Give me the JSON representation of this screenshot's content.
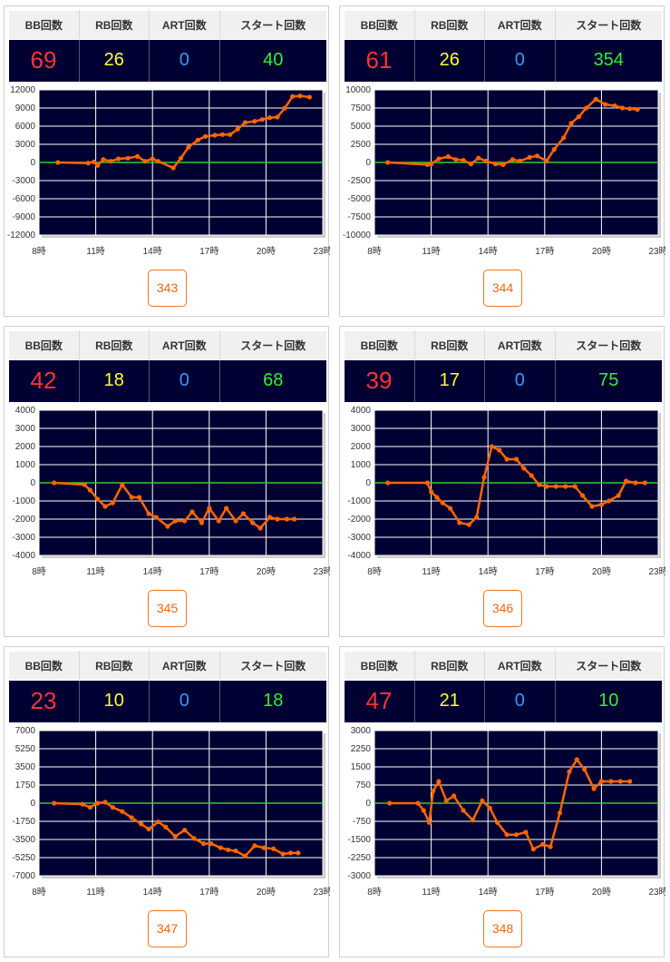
{
  "headers": {
    "bb": "BB回数",
    "rb": "RB回数",
    "art": "ART回数",
    "start": "スタート回数"
  },
  "colors": {
    "plot_bg": "#000033",
    "grid": "#ffffff",
    "zero_line": "#33cc33",
    "series": "#ff6600",
    "bb": "#ff3333",
    "rb": "#ffff33",
    "art": "#3399ff",
    "start": "#33ee33"
  },
  "machines": [
    {
      "number": "343",
      "bb": "69",
      "rb": "26",
      "art": "0",
      "start": "40"
    },
    {
      "number": "344",
      "bb": "61",
      "rb": "26",
      "art": "0",
      "start": "354"
    },
    {
      "number": "345",
      "bb": "42",
      "rb": "18",
      "art": "0",
      "start": "68"
    },
    {
      "number": "346",
      "bb": "39",
      "rb": "17",
      "art": "0",
      "start": "75"
    },
    {
      "number": "347",
      "bb": "23",
      "rb": "10",
      "art": "0",
      "start": "18"
    },
    {
      "number": "348",
      "bb": "47",
      "rb": "21",
      "art": "0",
      "start": "10"
    }
  ],
  "chart_data": [
    {
      "type": "line",
      "x_ticks": [
        "8時",
        "11時",
        "14時",
        "17時",
        "20時",
        "23時"
      ],
      "xlim": [
        8,
        23
      ],
      "y_ticks": [
        "12000",
        "9000",
        "6000",
        "3000",
        "0",
        "-3000",
        "-6000",
        "-9000",
        "-12000"
      ],
      "ylim": [
        -12000,
        12000
      ],
      "grid": true,
      "series": [
        {
          "x": [
            9,
            10.6,
            10.9,
            11.1,
            11.4,
            11.8,
            12.2,
            12.7,
            13.2,
            13.6,
            14,
            14.3,
            15.1,
            15.5,
            15.9,
            16.4,
            16.8,
            17.3,
            17.7,
            18.1,
            18.5,
            18.9,
            19.4,
            19.8,
            20.2,
            20.6,
            21.0,
            21.4,
            21.8,
            22.3
          ],
          "y": [
            0,
            -100,
            100,
            -500,
            500,
            200,
            600,
            700,
            1000,
            200,
            600,
            200,
            -900,
            700,
            2500,
            3700,
            4300,
            4500,
            4600,
            4600,
            5500,
            6600,
            6800,
            7100,
            7400,
            7500,
            9000,
            10900,
            11000,
            10800
          ]
        }
      ]
    },
    {
      "type": "line",
      "x_ticks": [
        "8時",
        "11時",
        "14時",
        "17時",
        "20時",
        "23時"
      ],
      "xlim": [
        8,
        23
      ],
      "y_ticks": [
        "10000",
        "7500",
        "5000",
        "2500",
        "0",
        "-2500",
        "-5000",
        "-7500",
        "-10000"
      ],
      "ylim": [
        -10000,
        10000
      ],
      "grid": true,
      "series": [
        {
          "x": [
            8.7,
            10.8,
            11.0,
            11.4,
            11.9,
            12.3,
            12.7,
            13.1,
            13.5,
            13.9,
            14.4,
            14.8,
            15.3,
            15.7,
            16.2,
            16.6,
            17.1,
            17.5,
            18.0,
            18.4,
            18.8,
            19.2,
            19.7,
            20.2,
            20.7,
            21.1,
            21.5,
            21.9
          ],
          "y": [
            0,
            -300,
            -200,
            500,
            800,
            400,
            300,
            -200,
            600,
            200,
            -200,
            -300,
            400,
            200,
            700,
            900,
            200,
            1800,
            3400,
            5400,
            6300,
            7500,
            8700,
            8000,
            7800,
            7500,
            7400,
            7300
          ]
        }
      ]
    },
    {
      "type": "line",
      "x_ticks": [
        "8時",
        "11時",
        "14時",
        "17時",
        "20時",
        "23時"
      ],
      "xlim": [
        8,
        23
      ],
      "y_ticks": [
        "4000",
        "3000",
        "2000",
        "1000",
        "0",
        "-1000",
        "-2000",
        "-3000",
        "-4000"
      ],
      "ylim": [
        -4000,
        4000
      ],
      "grid": true,
      "series": [
        {
          "x": [
            8.8,
            10.4,
            10.7,
            11.1,
            11.5,
            11.9,
            12.4,
            12.9,
            13.3,
            13.8,
            14.2,
            14.8,
            15.2,
            15.7,
            16.1,
            16.6,
            17.0,
            17.5,
            17.9,
            18.4,
            18.8,
            19.3,
            19.7,
            20.2,
            20.6,
            21.1,
            21.5
          ],
          "y": [
            0,
            -100,
            -400,
            -900,
            -1300,
            -1100,
            -100,
            -800,
            -800,
            -1700,
            -1900,
            -2400,
            -2100,
            -2100,
            -1600,
            -2200,
            -1400,
            -2100,
            -1400,
            -2100,
            -1700,
            -2200,
            -2500,
            -1900,
            -2000,
            -2000,
            -2000
          ]
        }
      ]
    },
    {
      "type": "line",
      "x_ticks": [
        "8時",
        "11時",
        "14時",
        "17時",
        "20時",
        "23時"
      ],
      "xlim": [
        8,
        23
      ],
      "y_ticks": [
        "4000",
        "3000",
        "2000",
        "1000",
        "0",
        "-1000",
        "-2000",
        "-3000",
        "-4000"
      ],
      "ylim": [
        -4000,
        4000
      ],
      "grid": true,
      "series": [
        {
          "x": [
            8.7,
            10.8,
            11.0,
            11.3,
            11.6,
            12.0,
            12.5,
            13.0,
            13.4,
            13.8,
            14.2,
            14.6,
            15.0,
            15.5,
            15.9,
            16.3,
            16.7,
            17.1,
            17.6,
            18.1,
            18.6,
            19.0,
            19.5,
            20.0,
            20.4,
            20.9,
            21.3,
            21.8,
            22.3
          ],
          "y": [
            0,
            0,
            -500,
            -800,
            -1100,
            -1400,
            -2200,
            -2300,
            -1900,
            300,
            2000,
            1800,
            1300,
            1300,
            800,
            400,
            -100,
            -200,
            -200,
            -200,
            -200,
            -700,
            -1300,
            -1200,
            -1000,
            -700,
            100,
            0,
            0
          ]
        }
      ]
    },
    {
      "type": "line",
      "x_ticks": [
        "8時",
        "11時",
        "14時",
        "17時",
        "20時",
        "23時"
      ],
      "xlim": [
        8,
        23
      ],
      "y_ticks": [
        "7000",
        "5250",
        "3500",
        "1750",
        "0",
        "-1750",
        "-3500",
        "-5250",
        "-7000"
      ],
      "ylim": [
        -7000,
        7000
      ],
      "grid": true,
      "series": [
        {
          "x": [
            8.8,
            10.3,
            10.7,
            11.1,
            11.5,
            11.9,
            12.4,
            12.9,
            13.4,
            13.8,
            14.3,
            14.7,
            15.2,
            15.7,
            16.2,
            16.7,
            17.1,
            17.6,
            18.0,
            18.4,
            18.9,
            19.4,
            19.9,
            20.4,
            20.9,
            21.3,
            21.7
          ],
          "y": [
            0,
            -100,
            -400,
            0,
            100,
            -400,
            -800,
            -1400,
            -2000,
            -2500,
            -1800,
            -2300,
            -3200,
            -2600,
            -3400,
            -3900,
            -3900,
            -4300,
            -4500,
            -4600,
            -5100,
            -4100,
            -4300,
            -4400,
            -4900,
            -4800,
            -4800
          ]
        }
      ]
    },
    {
      "type": "line",
      "x_ticks": [
        "8時",
        "11時",
        "14時",
        "17時",
        "20時",
        "23時"
      ],
      "xlim": [
        8,
        23
      ],
      "y_ticks": [
        "3000",
        "2250",
        "1500",
        "750",
        "0",
        "-750",
        "-1500",
        "-2250",
        "-3000"
      ],
      "ylim": [
        -3000,
        3000
      ],
      "grid": true,
      "series": [
        {
          "x": [
            8.8,
            10.3,
            10.6,
            10.9,
            11.1,
            11.4,
            11.8,
            12.2,
            12.7,
            13.2,
            13.7,
            14.1,
            14.5,
            15.0,
            15.5,
            16.0,
            16.4,
            16.9,
            17.3,
            17.8,
            18.3,
            18.7,
            19.1,
            19.6,
            20.0,
            20.5,
            21.0,
            21.5
          ],
          "y": [
            0,
            0,
            -300,
            -800,
            500,
            900,
            100,
            300,
            -300,
            -700,
            100,
            -200,
            -800,
            -1300,
            -1300,
            -1200,
            -1900,
            -1700,
            -1800,
            -400,
            1300,
            1800,
            1400,
            600,
            900,
            900,
            900,
            900
          ]
        }
      ]
    }
  ]
}
